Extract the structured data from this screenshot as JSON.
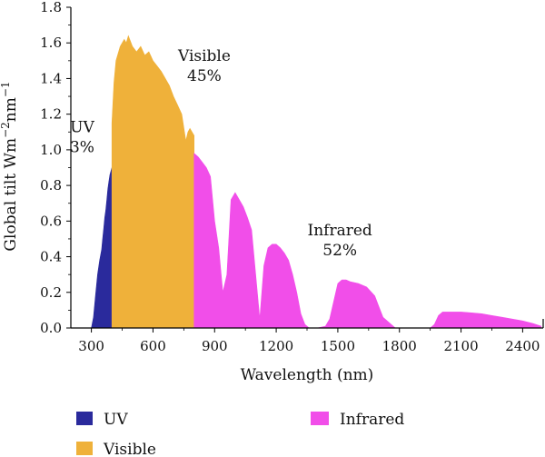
{
  "chart_data": {
    "type": "area",
    "title": "",
    "xlabel": "Wavelength (nm)",
    "ylabel_main": "Global tilt Wm",
    "ylabel_sup1": "−2",
    "ylabel_mid": "nm",
    "ylabel_sup2": "−1",
    "xlim": [
      200,
      2500
    ],
    "ylim": [
      0,
      1.8
    ],
    "xticks": [
      300,
      600,
      900,
      1200,
      1500,
      1800,
      2100,
      2400
    ],
    "yticks": [
      "0.0",
      "0.2",
      "0.4",
      "0.6",
      "0.8",
      "1.0",
      "1.2",
      "1.4",
      "1.6",
      "1.8"
    ],
    "grid": false,
    "legend_position": "bottom",
    "series": [
      {
        "name": "UV",
        "color": "#2a2a9c",
        "x": [
          300,
          310,
          320,
          330,
          340,
          350,
          355,
          360,
          365,
          370,
          375,
          380,
          385,
          390,
          395,
          400
        ],
        "y": [
          0.0,
          0.06,
          0.18,
          0.3,
          0.38,
          0.44,
          0.5,
          0.56,
          0.62,
          0.66,
          0.72,
          0.78,
          0.82,
          0.86,
          0.88,
          0.9
        ]
      },
      {
        "name": "Visible",
        "color": "#efb13a",
        "x": [
          400,
          410,
          420,
          440,
          460,
          470,
          480,
          500,
          520,
          540,
          560,
          580,
          600,
          620,
          640,
          660,
          680,
          700,
          720,
          740,
          760,
          770,
          780,
          800
        ],
        "y": [
          1.15,
          1.38,
          1.5,
          1.58,
          1.62,
          1.6,
          1.64,
          1.58,
          1.55,
          1.58,
          1.53,
          1.55,
          1.5,
          1.47,
          1.44,
          1.4,
          1.36,
          1.3,
          1.25,
          1.2,
          1.05,
          1.1,
          1.12,
          1.08
        ]
      },
      {
        "name": "Infrared",
        "color": "#f14ee9",
        "x": [
          800,
          820,
          840,
          860,
          880,
          900,
          920,
          940,
          960,
          980,
          1000,
          1020,
          1040,
          1060,
          1080,
          1100,
          1120,
          1140,
          1160,
          1180,
          1200,
          1220,
          1240,
          1260,
          1280,
          1300,
          1320,
          1340,
          1360,
          1380,
          1400,
          1440,
          1460,
          1480,
          1500,
          1520,
          1540,
          1560,
          1600,
          1640,
          1680,
          1700,
          1720,
          1760,
          1780,
          1800,
          1850,
          1900,
          1950,
          1970,
          1990,
          2010,
          2050,
          2100,
          2150,
          2200,
          2250,
          2300,
          2350,
          2400,
          2450,
          2490
        ],
        "y": [
          0.98,
          0.96,
          0.93,
          0.9,
          0.85,
          0.6,
          0.45,
          0.2,
          0.3,
          0.72,
          0.76,
          0.72,
          0.68,
          0.62,
          0.55,
          0.3,
          0.05,
          0.35,
          0.45,
          0.47,
          0.47,
          0.45,
          0.42,
          0.38,
          0.3,
          0.2,
          0.08,
          0.02,
          0.0,
          0.0,
          0.0,
          0.01,
          0.05,
          0.15,
          0.25,
          0.27,
          0.27,
          0.26,
          0.25,
          0.23,
          0.18,
          0.12,
          0.06,
          0.02,
          0.0,
          0.0,
          0.0,
          0.0,
          0.0,
          0.02,
          0.07,
          0.09,
          0.09,
          0.09,
          0.085,
          0.08,
          0.07,
          0.06,
          0.05,
          0.04,
          0.025,
          0.01
        ]
      }
    ],
    "annotations": [
      {
        "id": "uv",
        "lines": [
          "UV",
          "3%"
        ],
        "x": 255,
        "y": 1.1
      },
      {
        "id": "visible",
        "lines": [
          "Visible",
          "45%"
        ],
        "x": 850,
        "y": 1.5
      },
      {
        "id": "infrared",
        "lines": [
          "Infrared",
          "52%"
        ],
        "x": 1510,
        "y": 0.52
      }
    ],
    "legend": [
      {
        "label": "UV",
        "color": "#2a2a9c"
      },
      {
        "label": "Infrared",
        "color": "#f14ee9"
      },
      {
        "label": "Visible",
        "color": "#efb13a"
      }
    ]
  }
}
